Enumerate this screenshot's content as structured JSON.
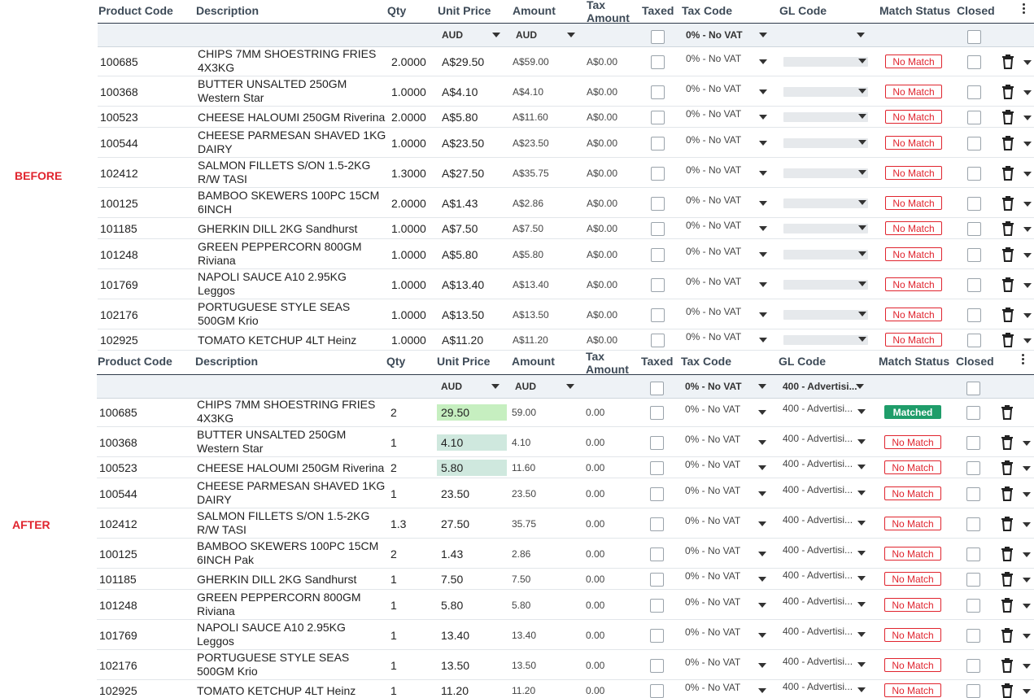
{
  "labels": {
    "before": "BEFORE",
    "after": "AFTER"
  },
  "columns": {
    "product_code": "Product Code",
    "description": "Description",
    "qty": "Qty",
    "unit_price": "Unit Price",
    "amount": "Amount",
    "tax_amount_1": "Tax",
    "tax_amount_2": "Amount",
    "taxed": "Taxed",
    "tax_code": "Tax Code",
    "gl_code": "GL Code",
    "match_status": "Match Status",
    "closed": "Closed"
  },
  "colors": {
    "no_match": "#e0242e",
    "matched": "#1f9d6a",
    "highlight_strong": "#c6efc0",
    "highlight_soft": "#cfe8de"
  },
  "before": {
    "filters": {
      "unit_price_currency": "AUD",
      "amount_currency": "AUD",
      "tax_code": "0% - No VAT",
      "gl_code": ""
    },
    "rows": [
      {
        "code": "100685",
        "desc": "CHIPS 7MM SHOESTRING FRIES 4X3KG",
        "qty": "2.0000",
        "price": "A$29.50",
        "amount": "A$59.00",
        "tax": "A$0.00",
        "tax_code": "0% - No VAT",
        "gl": "",
        "status": "No Match"
      },
      {
        "code": "100368",
        "desc": "BUTTER UNSALTED 250GM Western Star",
        "qty": "1.0000",
        "price": "A$4.10",
        "amount": "A$4.10",
        "tax": "A$0.00",
        "tax_code": "0% - No VAT",
        "gl": "",
        "status": "No Match"
      },
      {
        "code": "100523",
        "desc": "CHEESE HALOUMI 250GM Riverina",
        "qty": "2.0000",
        "price": "A$5.80",
        "amount": "A$11.60",
        "tax": "A$0.00",
        "tax_code": "0% - No VAT",
        "gl": "",
        "status": "No Match"
      },
      {
        "code": "100544",
        "desc": "CHEESE PARMESAN SHAVED 1KG DAIRY",
        "qty": "1.0000",
        "price": "A$23.50",
        "amount": "A$23.50",
        "tax": "A$0.00",
        "tax_code": "0% - No VAT",
        "gl": "",
        "status": "No Match"
      },
      {
        "code": "102412",
        "desc": "SALMON FILLETS S/ON 1.5-2KG R/W TASI",
        "qty": "1.3000",
        "price": "A$27.50",
        "amount": "A$35.75",
        "tax": "A$0.00",
        "tax_code": "0% - No VAT",
        "gl": "",
        "status": "No Match"
      },
      {
        "code": "100125",
        "desc": "BAMBOO SKEWERS 100PC 15CM 6INCH",
        "qty": "2.0000",
        "price": "A$1.43",
        "amount": "A$2.86",
        "tax": "A$0.00",
        "tax_code": "0% - No VAT",
        "gl": "",
        "status": "No Match"
      },
      {
        "code": "101185",
        "desc": "GHERKIN DILL 2KG Sandhurst",
        "qty": "1.0000",
        "price": "A$7.50",
        "amount": "A$7.50",
        "tax": "A$0.00",
        "tax_code": "0% - No VAT",
        "gl": "",
        "status": "No Match"
      },
      {
        "code": "101248",
        "desc": "GREEN PEPPERCORN 800GM Riviana",
        "qty": "1.0000",
        "price": "A$5.80",
        "amount": "A$5.80",
        "tax": "A$0.00",
        "tax_code": "0% - No VAT",
        "gl": "",
        "status": "No Match"
      },
      {
        "code": "101769",
        "desc": "NAPOLI SAUCE A10 2.95KG Leggos",
        "qty": "1.0000",
        "price": "A$13.40",
        "amount": "A$13.40",
        "tax": "A$0.00",
        "tax_code": "0% - No VAT",
        "gl": "",
        "status": "No Match"
      },
      {
        "code": "102176",
        "desc": "PORTUGUESE STYLE SEAS 500GM Krio",
        "qty": "1.0000",
        "price": "A$13.50",
        "amount": "A$13.50",
        "tax": "A$0.00",
        "tax_code": "0% - No VAT",
        "gl": "",
        "status": "No Match"
      },
      {
        "code": "102925",
        "desc": "TOMATO KETCHUP 4LT Heinz",
        "qty": "1.0000",
        "price": "A$11.20",
        "amount": "A$11.20",
        "tax": "A$0.00",
        "tax_code": "0% - No VAT",
        "gl": "",
        "status": "No Match"
      }
    ]
  },
  "after": {
    "filters": {
      "unit_price_currency": "AUD",
      "amount_currency": "AUD",
      "tax_code": "0% - No VAT",
      "gl_code": "400 - Advertisi..."
    },
    "rows": [
      {
        "code": "100685",
        "desc": "CHIPS 7MM SHOESTRING FRIES 4X3KG",
        "qty": "2",
        "price": "29.50",
        "amount": "59.00",
        "tax": "0.00",
        "tax_code": "0% - No VAT",
        "gl": "400 - Advertisi...",
        "status": "Matched",
        "hl": "strong"
      },
      {
        "code": "100368",
        "desc": "BUTTER UNSALTED 250GM Western Star",
        "qty": "1",
        "price": "4.10",
        "amount": "4.10",
        "tax": "0.00",
        "tax_code": "0% - No VAT",
        "gl": "400 - Advertisi...",
        "status": "No Match",
        "hl": "soft"
      },
      {
        "code": "100523",
        "desc": "CHEESE HALOUMI 250GM Riverina",
        "qty": "2",
        "price": "5.80",
        "amount": "11.60",
        "tax": "0.00",
        "tax_code": "0% - No VAT",
        "gl": "400 - Advertisi...",
        "status": "No Match",
        "hl": "soft"
      },
      {
        "code": "100544",
        "desc": "CHEESE PARMESAN SHAVED 1KG DAIRY",
        "qty": "1",
        "price": "23.50",
        "amount": "23.50",
        "tax": "0.00",
        "tax_code": "0% - No VAT",
        "gl": "400 - Advertisi...",
        "status": "No Match"
      },
      {
        "code": "102412",
        "desc": "SALMON FILLETS S/ON 1.5-2KG R/W TASI",
        "qty": "1.3",
        "price": "27.50",
        "amount": "35.75",
        "tax": "0.00",
        "tax_code": "0% - No VAT",
        "gl": "400 - Advertisi...",
        "status": "No Match"
      },
      {
        "code": "100125",
        "desc": "BAMBOO SKEWERS 100PC 15CM 6INCH Pak",
        "qty": "2",
        "price": "1.43",
        "amount": "2.86",
        "tax": "0.00",
        "tax_code": "0% - No VAT",
        "gl": "400 - Advertisi...",
        "status": "No Match"
      },
      {
        "code": "101185",
        "desc": "GHERKIN DILL 2KG Sandhurst",
        "qty": "1",
        "price": "7.50",
        "amount": "7.50",
        "tax": "0.00",
        "tax_code": "0% - No VAT",
        "gl": "400 - Advertisi...",
        "status": "No Match"
      },
      {
        "code": "101248",
        "desc": "GREEN PEPPERCORN 800GM Riviana",
        "qty": "1",
        "price": "5.80",
        "amount": "5.80",
        "tax": "0.00",
        "tax_code": "0% - No VAT",
        "gl": "400 - Advertisi...",
        "status": "No Match"
      },
      {
        "code": "101769",
        "desc": "NAPOLI SAUCE A10 2.95KG Leggos",
        "qty": "1",
        "price": "13.40",
        "amount": "13.40",
        "tax": "0.00",
        "tax_code": "0% - No VAT",
        "gl": "400 - Advertisi...",
        "status": "No Match"
      },
      {
        "code": "102176",
        "desc": "PORTUGUESE STYLE SEAS 500GM Krio",
        "qty": "1",
        "price": "13.50",
        "amount": "13.50",
        "tax": "0.00",
        "tax_code": "0% - No VAT",
        "gl": "400 - Advertisi...",
        "status": "No Match"
      },
      {
        "code": "102925",
        "desc": "TOMATO KETCHUP 4LT Heinz",
        "qty": "1",
        "price": "11.20",
        "amount": "11.20",
        "tax": "0.00",
        "tax_code": "0% - No VAT",
        "gl": "400 - Advertisi...",
        "status": "No Match"
      }
    ]
  }
}
